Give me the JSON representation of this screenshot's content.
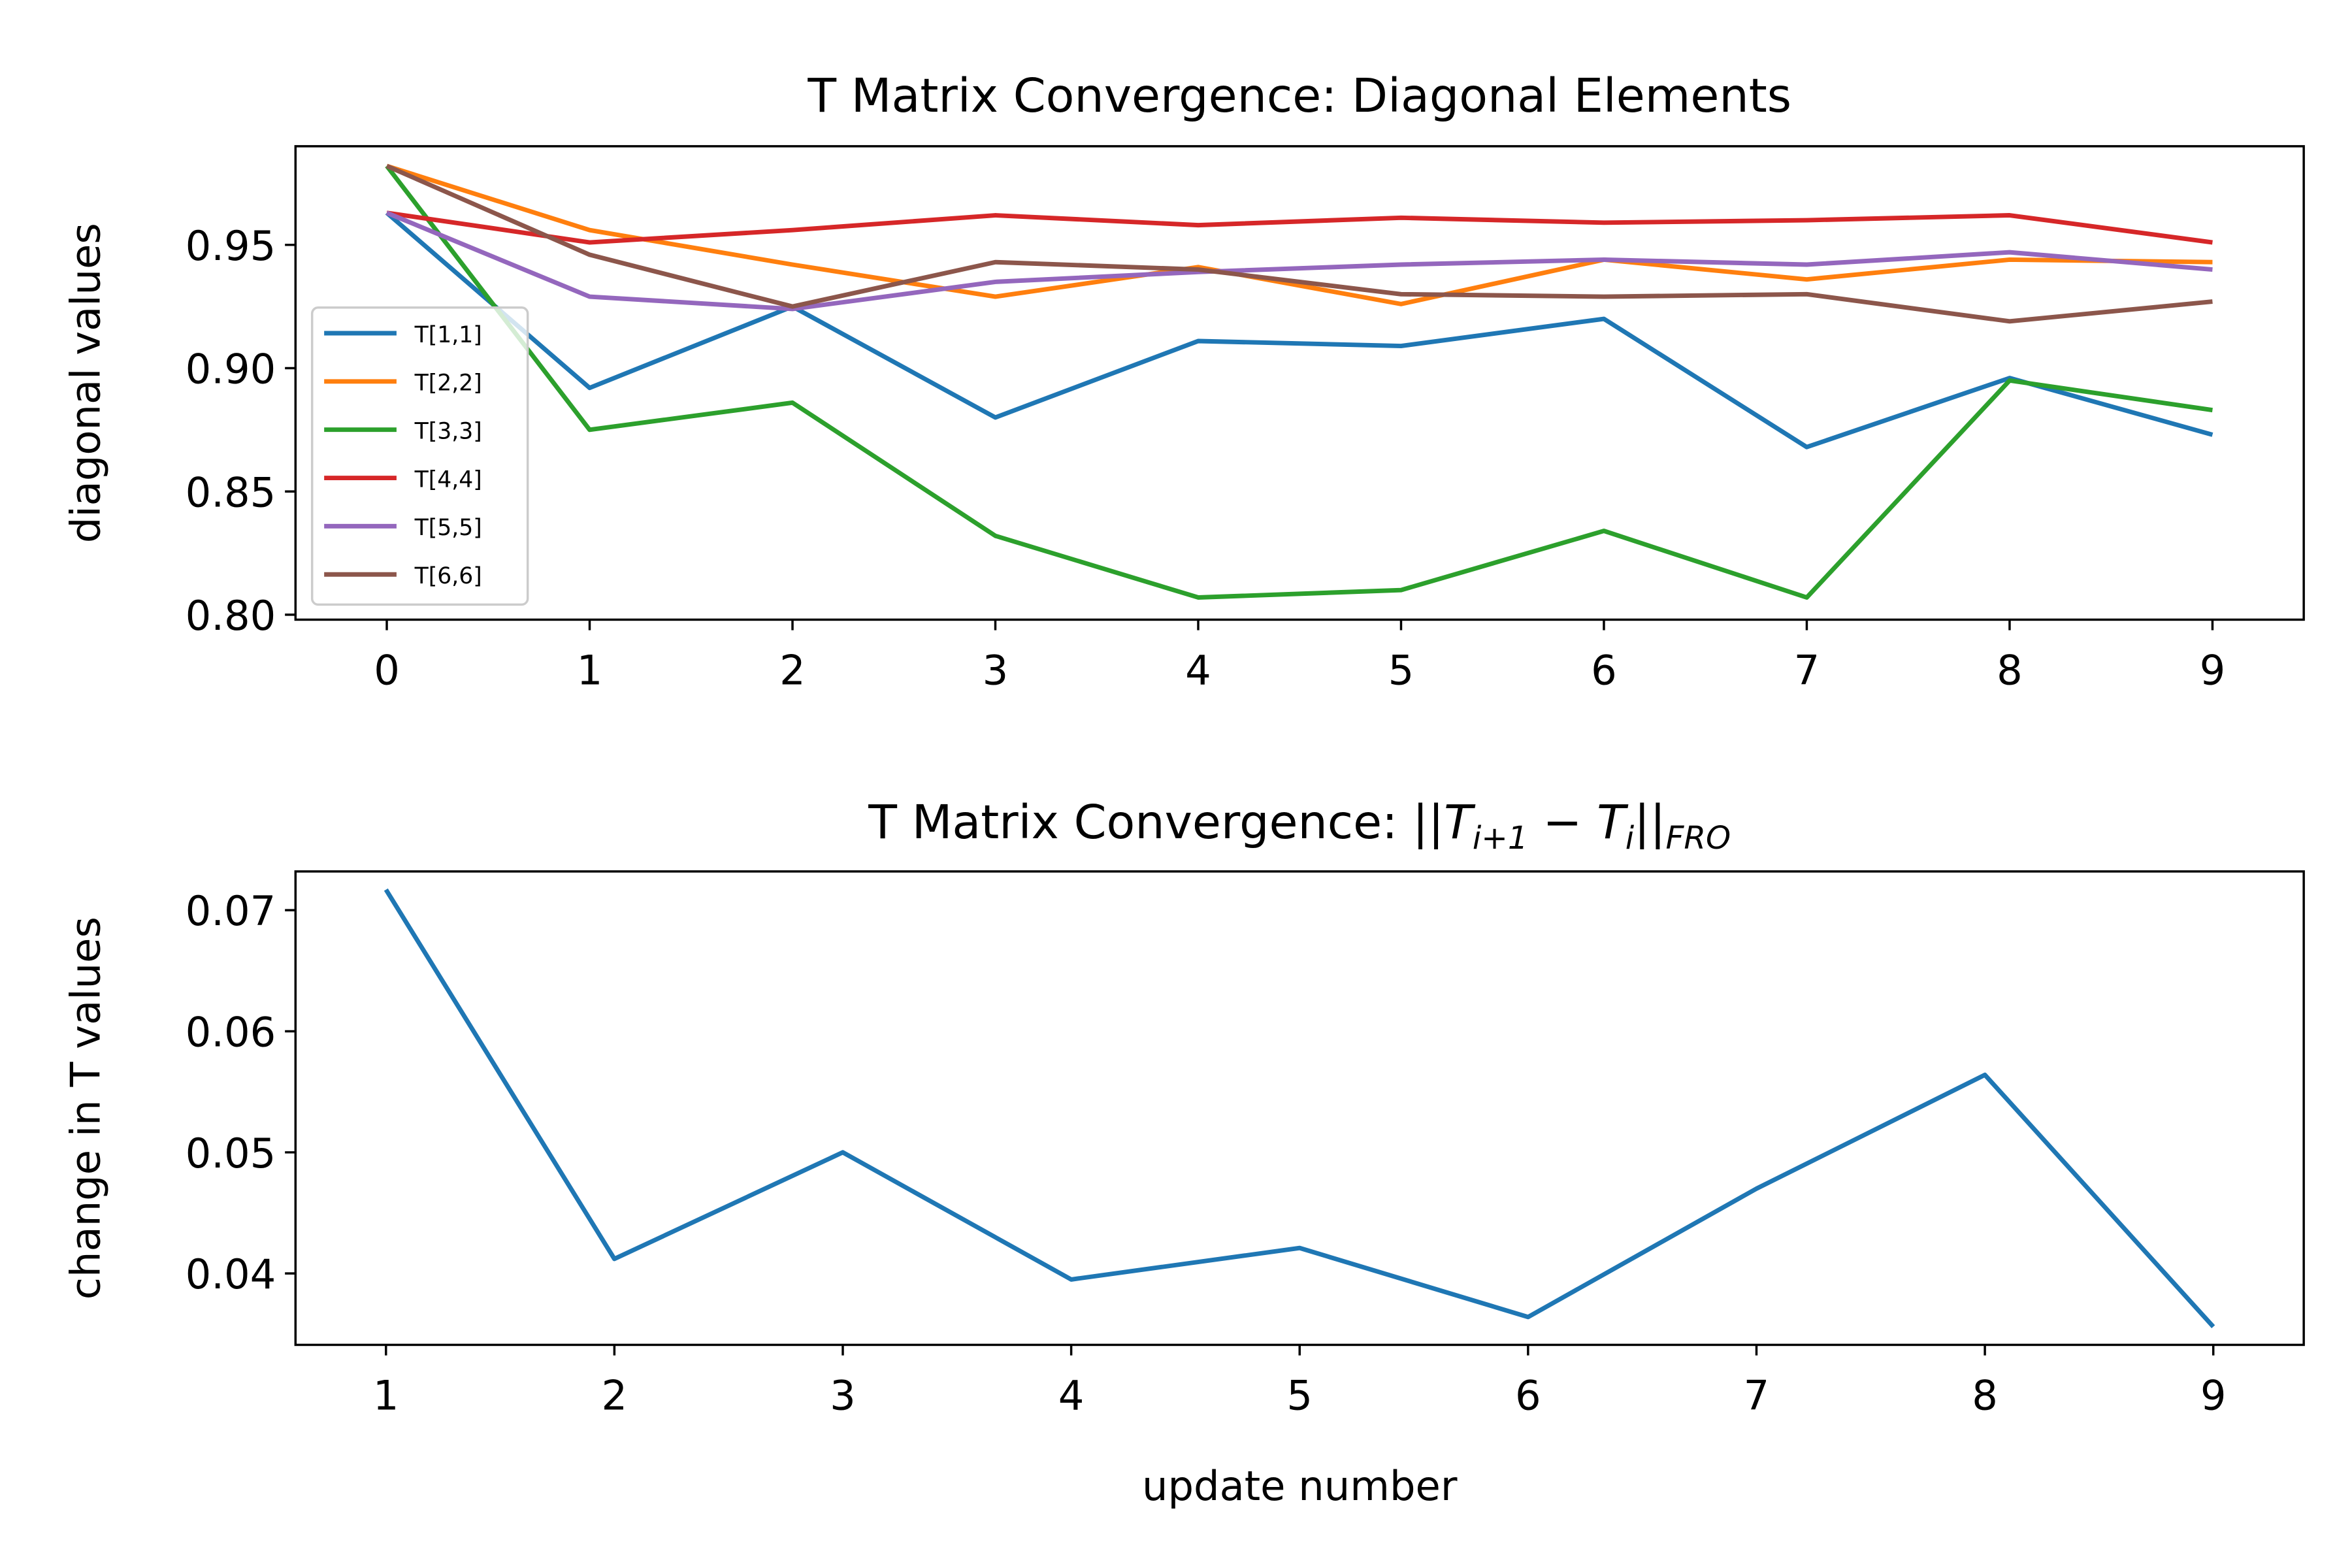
{
  "chart_data": [
    {
      "type": "line",
      "title": "T Matrix Convergence: Diagonal Elements",
      "y_label": "diagonal values",
      "x": [
        0,
        1,
        2,
        3,
        4,
        5,
        6,
        7,
        8,
        9
      ],
      "xlim": [
        -0.45,
        9.45
      ],
      "xticks": [
        0,
        1,
        2,
        3,
        4,
        5,
        6,
        7,
        8,
        9
      ],
      "ylim": [
        0.798,
        0.99
      ],
      "yticks": [
        {
          "value": 0.8,
          "label": "0.80"
        },
        0.85,
        {
          "value": 0.9,
          "label": "0.90"
        },
        0.95
      ],
      "legend": "lower left",
      "series": [
        {
          "name": "T[1,1]",
          "color": "#1f77b4",
          "values": [
            0.963,
            0.892,
            0.925,
            0.88,
            0.911,
            0.909,
            0.92,
            0.868,
            0.896,
            0.873
          ]
        },
        {
          "name": "T[2,2]",
          "color": "#ff7f0e",
          "values": [
            0.982,
            0.956,
            0.942,
            0.929,
            0.941,
            0.926,
            0.944,
            0.936,
            0.944,
            0.943
          ]
        },
        {
          "name": "T[3,3]",
          "color": "#2ca02c",
          "values": [
            0.982,
            0.875,
            0.886,
            0.832,
            0.807,
            0.81,
            0.834,
            0.807,
            0.895,
            0.883
          ]
        },
        {
          "name": "T[4,4]",
          "color": "#d62728",
          "values": [
            0.963,
            0.951,
            0.956,
            0.962,
            0.958,
            0.961,
            0.959,
            0.96,
            0.962,
            0.951
          ]
        },
        {
          "name": "T[5,5]",
          "color": "#9467bd",
          "values": [
            0.963,
            0.929,
            0.924,
            0.935,
            0.939,
            0.942,
            0.944,
            0.942,
            0.947,
            0.94
          ]
        },
        {
          "name": "T[6,6]",
          "color": "#8c564b",
          "values": [
            0.982,
            0.946,
            0.925,
            0.943,
            0.94,
            0.93,
            0.929,
            0.93,
            0.919,
            0.927
          ]
        }
      ]
    },
    {
      "type": "line",
      "title": [
        "T Matrix Convergence: ||",
        "T",
        "i+1",
        " − ",
        "T",
        "i",
        "||",
        "FRO"
      ],
      "x_label": "update number",
      "y_label": "change in T values",
      "x": [
        1,
        2,
        3,
        4,
        5,
        6,
        7,
        8,
        9
      ],
      "xlim": [
        0.604,
        9.396
      ],
      "xticks": [
        1,
        2,
        3,
        4,
        5,
        6,
        7,
        8,
        9
      ],
      "ylim": [
        0.0341,
        0.0732
      ],
      "yticks": [
        0.04,
        0.05,
        0.06,
        0.07
      ],
      "series": [
        {
          "color": "#1f77b4",
          "values": [
            0.0717,
            0.0412,
            0.05,
            0.0395,
            0.0421,
            0.0364,
            0.047,
            0.0564,
            0.0356
          ]
        }
      ]
    }
  ]
}
